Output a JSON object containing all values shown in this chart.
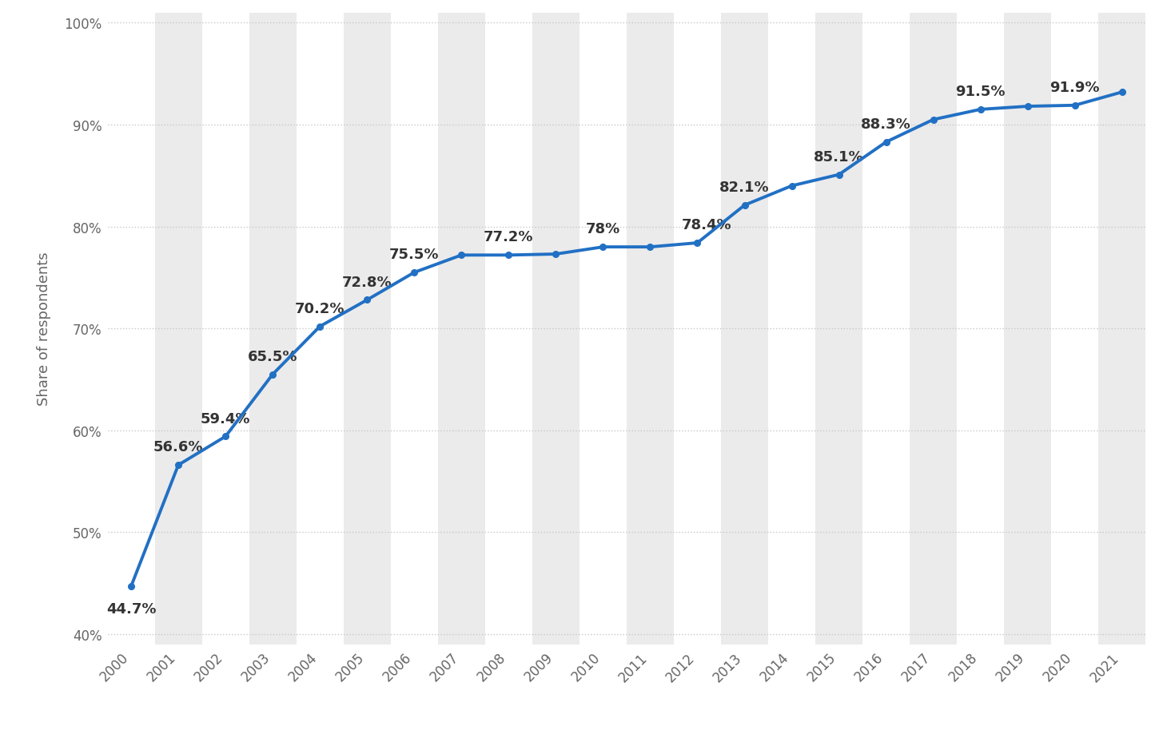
{
  "years": [
    2000,
    2001,
    2002,
    2003,
    2004,
    2005,
    2006,
    2007,
    2008,
    2009,
    2010,
    2011,
    2012,
    2013,
    2014,
    2015,
    2016,
    2017,
    2018,
    2019,
    2020,
    2021
  ],
  "values": [
    44.7,
    56.6,
    59.4,
    65.5,
    70.2,
    72.8,
    75.5,
    77.2,
    77.2,
    77.3,
    78.0,
    78.0,
    78.4,
    82.1,
    84.0,
    85.1,
    88.3,
    90.5,
    91.5,
    91.8,
    91.9,
    93.2
  ],
  "labels": [
    "44.7%",
    "56.6%",
    "59.4%",
    "65.5%",
    "70.2%",
    "72.8%",
    "75.5%",
    "",
    "77.2%",
    "",
    "78%",
    "",
    "78.4%",
    "82.1%",
    "",
    "85.1%",
    "88.3%",
    "",
    "91.5%",
    "",
    "91.9%",
    ""
  ],
  "label_above": [
    false,
    true,
    true,
    true,
    true,
    true,
    true,
    false,
    true,
    false,
    true,
    false,
    true,
    true,
    false,
    true,
    true,
    false,
    true,
    false,
    true,
    false
  ],
  "line_color": "#2170C4",
  "marker_color": "#2170C4",
  "background_color": "#ffffff",
  "band_color": "#ebebeb",
  "grid_color": "#c8c8c8",
  "ylabel": "Share of respondents",
  "ylim_min": 39,
  "ylim_max": 101,
  "yticks": [
    40,
    50,
    60,
    70,
    80,
    90,
    100
  ],
  "ytick_labels": [
    "40%",
    "50%",
    "60%",
    "70%",
    "80%",
    "90%",
    "100%"
  ],
  "label_fontsize": 13,
  "tick_fontsize": 12,
  "ylabel_fontsize": 13,
  "annotation_color": "#333333",
  "band_indices": [
    1,
    3,
    5,
    7,
    9,
    11,
    13,
    15,
    17,
    19,
    21
  ]
}
